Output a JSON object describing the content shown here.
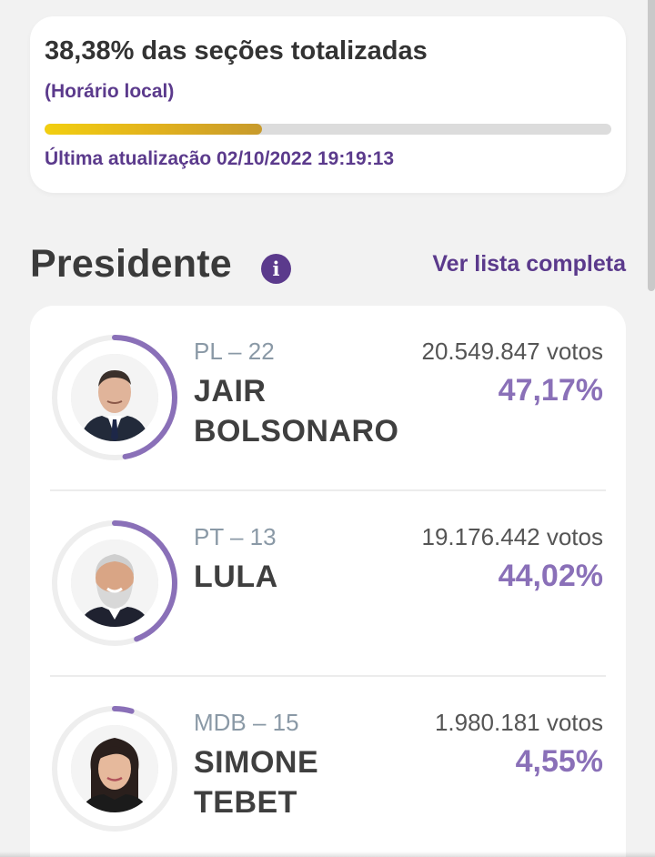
{
  "status": {
    "sections_counted": "38,38% das seções totalizadas",
    "timezone_note": "(Horário local)",
    "progress_fraction": 0.3838,
    "last_update": "Última atualização 02/10/2022 19:19:13"
  },
  "section": {
    "title": "Presidente",
    "info_icon": "info-icon",
    "see_all": "Ver lista completa"
  },
  "colors": {
    "accent": "#5b3a8c",
    "percent": "#8a70b8",
    "ring_progress": "#8a70b8",
    "ring_track": "#eeeeee",
    "progress_start": "#f2cf10",
    "progress_end": "#c79a2c"
  },
  "candidates": [
    {
      "party": "PL – 22",
      "name": "JAIR BOLSONARO",
      "votes": "20.549.847 votos",
      "percent": "47,17%",
      "share": 0.4717,
      "photo": "portrait-man-suit"
    },
    {
      "party": "PT – 13",
      "name": "LULA",
      "votes": "19.176.442 votos",
      "percent": "44,02%",
      "share": 0.4402,
      "photo": "portrait-man-beard"
    },
    {
      "party": "MDB – 15",
      "name": "SIMONE TEBET",
      "votes": "1.980.181 votos",
      "percent": "4,55%",
      "share": 0.0455,
      "photo": "portrait-woman"
    }
  ]
}
